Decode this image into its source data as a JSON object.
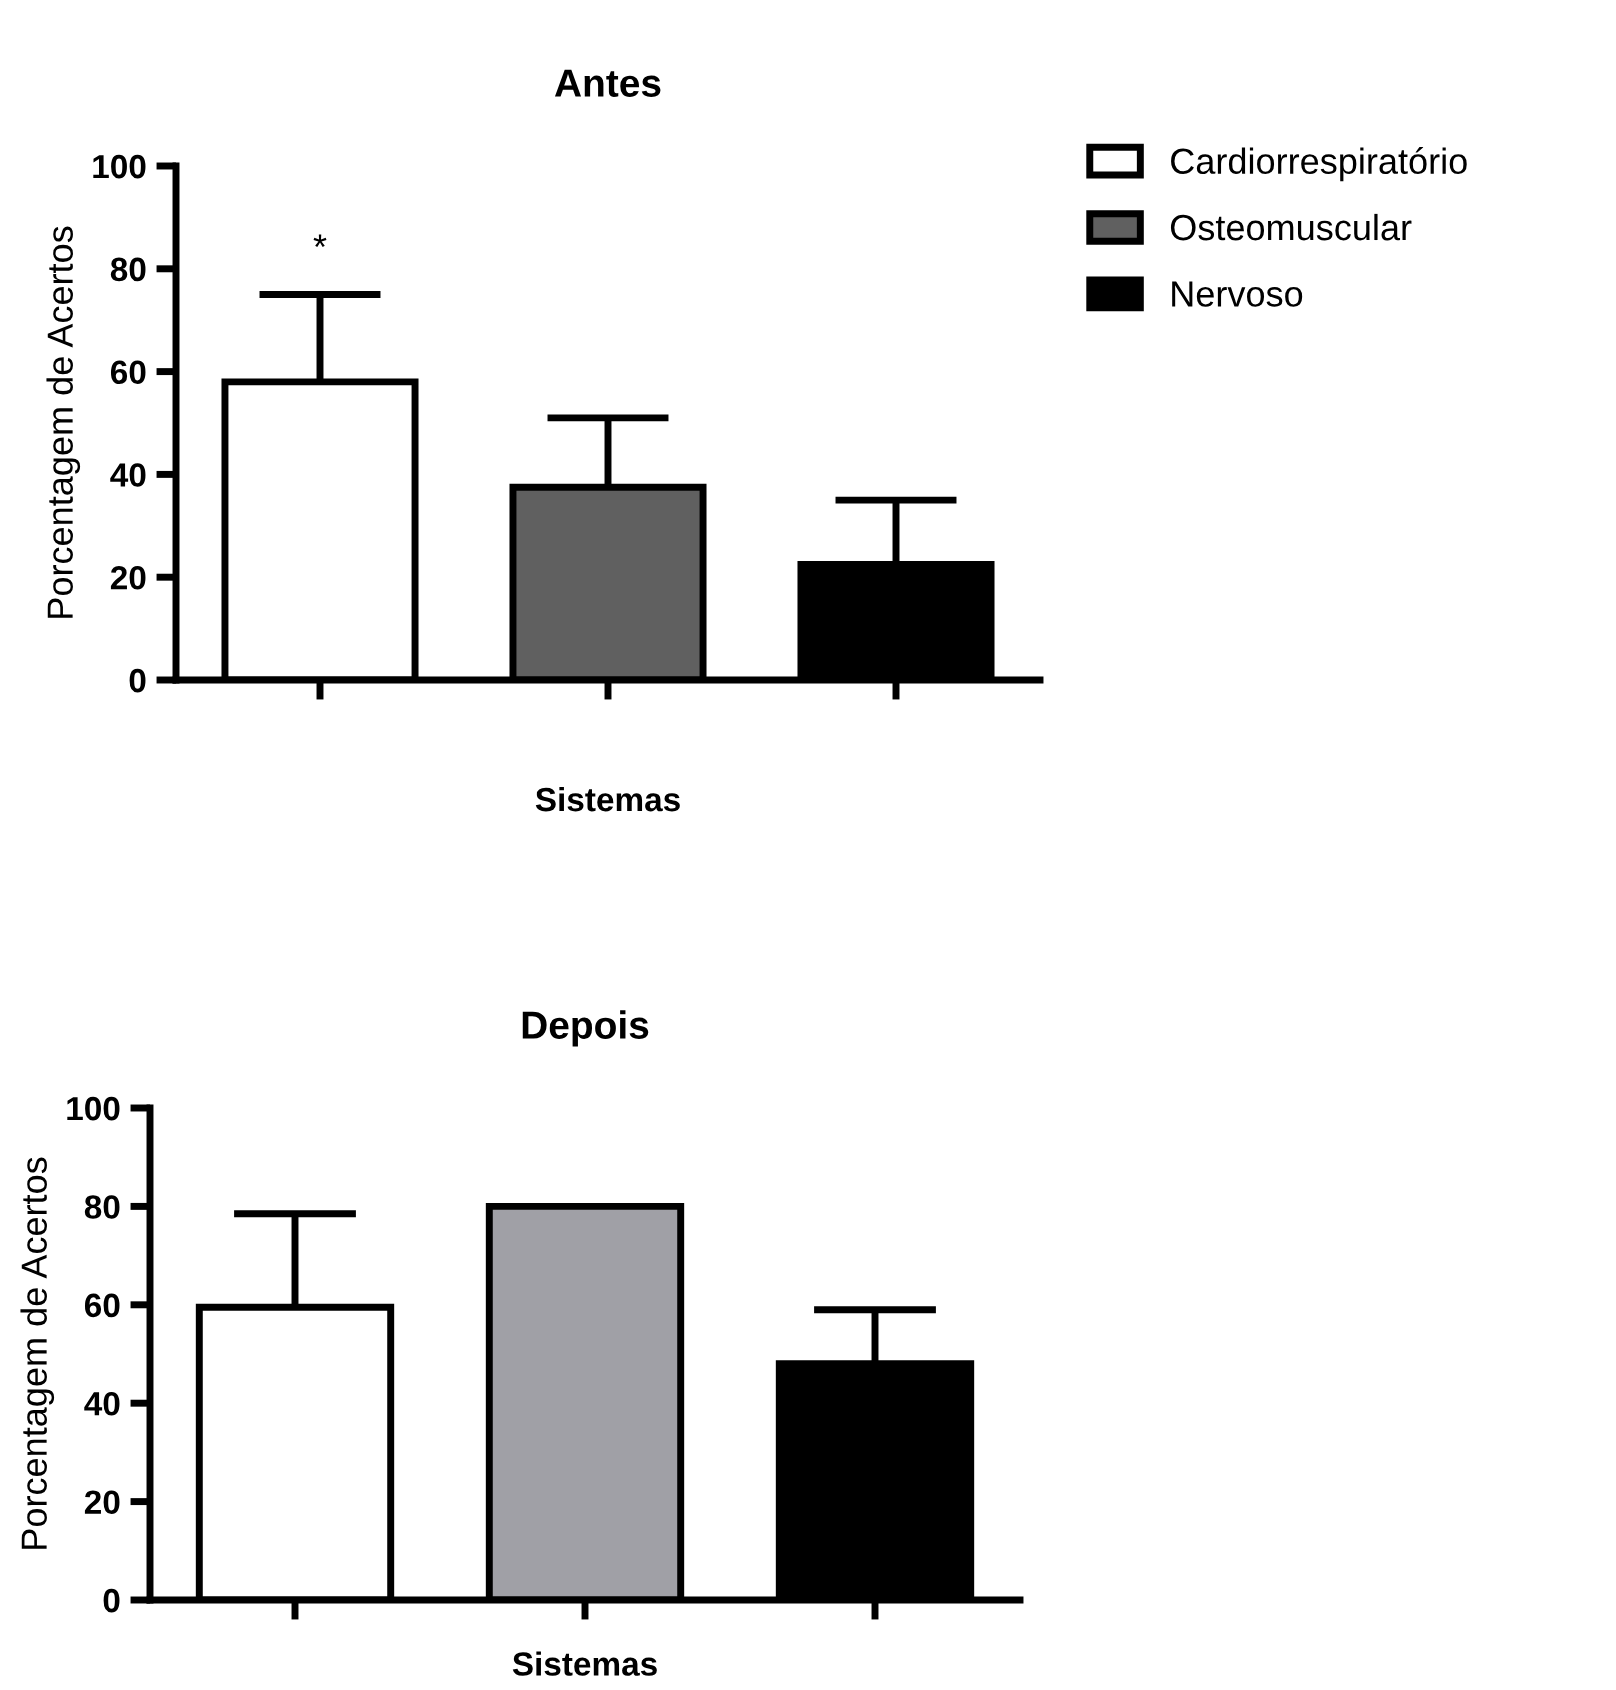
{
  "chart_data": [
    {
      "type": "bar",
      "title": "Antes",
      "xlabel": "Sistemas",
      "ylabel": "Porcentagem de Acertos",
      "categories": [
        null,
        null,
        null
      ],
      "series": [
        {
          "name": "Cardiorrespiratório",
          "color": "#ffffff",
          "values": [
            58,
            null,
            null
          ],
          "errors": [
            [
              58,
              75
            ],
            null,
            null
          ]
        },
        {
          "name": "Osteomuscular",
          "color": "#606060",
          "values": [
            null,
            37.5,
            null
          ],
          "errors": [
            null,
            [
              37.5,
              51
            ],
            null
          ]
        },
        {
          "name": "Nervoso",
          "color": "#000000",
          "values": [
            null,
            null,
            22.5
          ],
          "errors": [
            null,
            null,
            [
              22.5,
              35
            ]
          ]
        }
      ],
      "ylim": [
        0,
        100
      ],
      "yticks": [
        0,
        20,
        40,
        60,
        80,
        100
      ],
      "annotations": [
        "*"
      ],
      "legend": "right",
      "grid": false
    },
    {
      "type": "bar",
      "title": "Depois",
      "xlabel": "Sistemas",
      "ylabel": "Porcentagem de Acertos",
      "categories": [
        null,
        null,
        null
      ],
      "series": [
        {
          "color": "#ffffff",
          "values": [
            59.5,
            null,
            null
          ],
          "errors": [
            [
              59.5,
              78.5
            ],
            null,
            null
          ]
        },
        {
          "color": "#a0a0a6",
          "values": [
            null,
            80,
            null
          ]
        },
        {
          "color": "#000000",
          "values": [
            null,
            null,
            48
          ],
          "errors": [
            null,
            null,
            [
              48,
              59
            ]
          ]
        }
      ],
      "ylim": [
        0,
        100
      ],
      "yticks": [
        0,
        20,
        40,
        60,
        80,
        100
      ],
      "grid": false
    }
  ]
}
